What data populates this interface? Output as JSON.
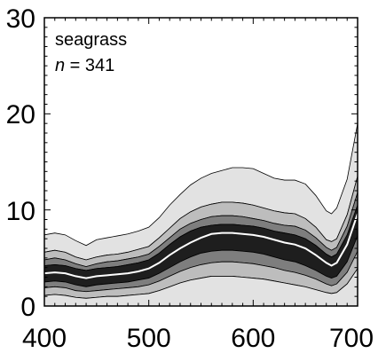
{
  "chart_data": {
    "type": "area",
    "title": "",
    "xlabel": "",
    "ylabel": "",
    "xlim": [
      400,
      700
    ],
    "ylim": [
      0,
      30
    ],
    "x_ticks": [
      "400",
      "500",
      "600",
      "700"
    ],
    "y_ticks": [
      "0",
      "10",
      "20",
      "30"
    ],
    "annotations": {
      "label": "seagrass",
      "n_prefix": "n",
      "n_rest": " = 341"
    },
    "grid": false,
    "legend": "none",
    "x": [
      400,
      410,
      420,
      430,
      440,
      450,
      460,
      470,
      480,
      490,
      500,
      510,
      520,
      530,
      540,
      550,
      560,
      570,
      580,
      590,
      600,
      610,
      620,
      630,
      640,
      650,
      660,
      670,
      675,
      680,
      690,
      700
    ],
    "series": [
      {
        "values": [
          7.4,
          7.6,
          7.4,
          6.8,
          6.3,
          6.9,
          7.1,
          7.3,
          7.5,
          7.8,
          8.2,
          9.2,
          10.5,
          11.6,
          12.6,
          13.3,
          13.8,
          14.1,
          14.4,
          14.4,
          14.3,
          13.8,
          13.3,
          13.1,
          13.1,
          12.7,
          11.5,
          9.9,
          9.6,
          10.2,
          13.2,
          19.0
        ],
        "color": "#e2e2e2"
      },
      {
        "values": [
          5.6,
          5.8,
          5.6,
          5.1,
          4.8,
          5.1,
          5.3,
          5.4,
          5.6,
          5.9,
          6.2,
          7.1,
          8.1,
          9.1,
          9.8,
          10.3,
          10.6,
          10.8,
          10.8,
          10.7,
          10.5,
          10.2,
          9.9,
          9.7,
          9.6,
          9.1,
          8.2,
          6.9,
          6.7,
          7.0,
          9.5,
          13.5
        ],
        "color": "#bdbdbd"
      },
      {
        "values": [
          4.8,
          5.0,
          4.8,
          4.4,
          4.1,
          4.4,
          4.6,
          4.7,
          4.9,
          5.1,
          5.4,
          6.2,
          7.1,
          8.0,
          8.6,
          9.0,
          9.3,
          9.4,
          9.4,
          9.3,
          9.1,
          8.9,
          8.6,
          8.4,
          8.3,
          7.9,
          7.1,
          6.1,
          5.8,
          6.1,
          8.3,
          11.8
        ],
        "color": "#7e7e7e"
      },
      {
        "values": [
          4.2,
          4.3,
          4.2,
          3.9,
          3.7,
          3.9,
          4.0,
          4.1,
          4.3,
          4.5,
          4.8,
          5.5,
          6.4,
          7.2,
          7.8,
          8.2,
          8.4,
          8.5,
          8.5,
          8.4,
          8.3,
          8.1,
          7.8,
          7.6,
          7.4,
          7.0,
          6.3,
          5.4,
          5.1,
          5.4,
          7.4,
          10.5
        ],
        "color": "#1e1e1e"
      },
      {
        "values": [
          2.5,
          2.6,
          2.5,
          2.2,
          2.0,
          2.2,
          2.3,
          2.4,
          2.5,
          2.7,
          2.9,
          3.4,
          4.0,
          4.6,
          5.1,
          5.5,
          5.7,
          5.8,
          5.8,
          5.7,
          5.6,
          5.4,
          5.1,
          4.8,
          4.6,
          4.2,
          3.7,
          3.1,
          2.9,
          3.1,
          4.6,
          7.3
        ],
        "color": "#7e7e7e"
      },
      {
        "values": [
          1.9,
          2.0,
          1.9,
          1.6,
          1.5,
          1.6,
          1.7,
          1.8,
          1.9,
          2.0,
          2.2,
          2.6,
          3.1,
          3.6,
          4.0,
          4.3,
          4.5,
          4.6,
          4.6,
          4.5,
          4.4,
          4.2,
          4.0,
          3.7,
          3.5,
          3.2,
          2.8,
          2.3,
          2.1,
          2.3,
          3.5,
          5.7
        ],
        "color": "#bdbdbd"
      },
      {
        "values": [
          1.1,
          1.2,
          1.1,
          0.9,
          0.8,
          0.9,
          1.0,
          1.0,
          1.1,
          1.2,
          1.3,
          1.6,
          2.0,
          2.4,
          2.7,
          2.9,
          3.1,
          3.1,
          3.1,
          3.0,
          2.9,
          2.8,
          2.6,
          2.4,
          2.2,
          2.0,
          1.7,
          1.4,
          1.3,
          1.4,
          2.3,
          3.9
        ],
        "color": "#e2e2e2"
      }
    ],
    "median": {
      "values": [
        3.4,
        3.5,
        3.4,
        3.1,
        2.9,
        3.1,
        3.2,
        3.3,
        3.4,
        3.6,
        3.9,
        4.5,
        5.3,
        6.0,
        6.6,
        7.1,
        7.5,
        7.6,
        7.6,
        7.5,
        7.4,
        7.2,
        6.9,
        6.6,
        6.4,
        6.0,
        5.3,
        4.5,
        4.2,
        4.5,
        6.4,
        9.6
      ],
      "color": "#ffffff"
    }
  }
}
